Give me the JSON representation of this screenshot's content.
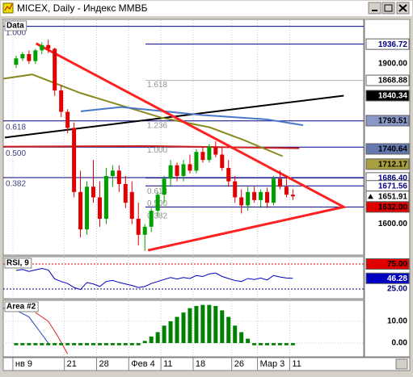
{
  "window": {
    "title": "MICEX, Daily - Индекс ММВБ"
  },
  "chart_data": [
    {
      "type": "candlestick",
      "label": "Data",
      "categories": [
        "нв 9",
        null,
        null,
        null,
        null,
        null,
        null,
        null,
        "21",
        null,
        null,
        null,
        null,
        "28",
        null,
        null,
        null,
        null,
        "Фев 4",
        null,
        null,
        null,
        null,
        "11",
        null,
        null,
        null,
        null,
        "18",
        null,
        null,
        null,
        null,
        null,
        "26",
        null,
        null,
        null,
        "Мар 3",
        null,
        null,
        null,
        null,
        "11"
      ],
      "open": [
        1898,
        1910,
        1918,
        1905,
        1925,
        1935,
        1928,
        1850,
        1810,
        1780,
        1660,
        1590,
        1670,
        1650,
        1610,
        1690,
        1700,
        1675,
        1660,
        1610,
        1580,
        1595,
        1625,
        1655,
        1685,
        1710,
        1690,
        1712,
        1700,
        1735,
        1720,
        1745,
        1730,
        1705,
        1680,
        1650,
        1635,
        1660,
        1645,
        1660,
        1640,
        1685,
        1670,
        1655
      ],
      "high": [
        1915,
        1922,
        1925,
        1928,
        1940,
        1945,
        1930,
        1860,
        1815,
        1790,
        1700,
        1680,
        1720,
        1680,
        1705,
        1710,
        1710,
        1690,
        1680,
        1640,
        1600,
        1630,
        1660,
        1690,
        1720,
        1715,
        1720,
        1730,
        1740,
        1745,
        1750,
        1755,
        1745,
        1720,
        1690,
        1665,
        1670,
        1670,
        1665,
        1668,
        1690,
        1700,
        1690,
        1665
      ],
      "low": [
        1892,
        1905,
        1900,
        1900,
        1918,
        1920,
        1840,
        1800,
        1770,
        1650,
        1575,
        1580,
        1640,
        1595,
        1600,
        1670,
        1660,
        1630,
        1600,
        1560,
        1550,
        1585,
        1615,
        1640,
        1670,
        1680,
        1680,
        1695,
        1695,
        1715,
        1715,
        1725,
        1700,
        1670,
        1640,
        1620,
        1625,
        1640,
        1630,
        1630,
        1635,
        1665,
        1650,
        1645
      ],
      "close": [
        1910,
        1918,
        1905,
        1925,
        1935,
        1928,
        1850,
        1810,
        1780,
        1660,
        1590,
        1670,
        1650,
        1610,
        1690,
        1700,
        1675,
        1640,
        1610,
        1580,
        1595,
        1625,
        1655,
        1685,
        1710,
        1690,
        1712,
        1700,
        1735,
        1720,
        1745,
        1730,
        1705,
        1680,
        1650,
        1635,
        1660,
        1645,
        1660,
        1640,
        1685,
        1670,
        1655,
        1651.91
      ],
      "up_color": "#00a000",
      "down_color": "#e00000",
      "xlim": [
        -2,
        54
      ],
      "ylim": [
        1545,
        1980
      ],
      "yticks": [
        {
          "value": 1900,
          "label": "1900.00"
        },
        {
          "value": 1600,
          "label": "1600.00"
        }
      ],
      "price_labels": [
        {
          "value": 1936.72,
          "label": "1936.72",
          "bg": "#ffffff",
          "fg": "#000080",
          "line": "#000080"
        },
        {
          "value": 1868.88,
          "label": "1868.88",
          "bg": "#ffffff",
          "fg": "#000000",
          "line": "#b0b0b0"
        },
        {
          "value": 1840.34,
          "label": "1840.34",
          "bg": "#000000",
          "fg": "#ffffff"
        },
        {
          "value": 1793.51,
          "label": "1793.51",
          "bg": "#8a98c8",
          "fg": "#000000"
        },
        {
          "value": 1740.64,
          "label": "1740.64",
          "bg": "#6678b0",
          "fg": "#000000"
        },
        {
          "value": 1712.17,
          "label": "1712.17",
          "bg": "#a8a040",
          "fg": "#000000"
        },
        {
          "value": 1686.4,
          "label": "1686.40",
          "bg": "#ffffff",
          "fg": "#000080",
          "line": "#000080"
        },
        {
          "value": 1671.56,
          "label": "1671.56",
          "bg": "#ffffff",
          "fg": "#000080",
          "line": "#000080"
        },
        {
          "value": 1632,
          "label": "1632.00",
          "bg": "#e00000",
          "fg": "#000000",
          "line": "#000080"
        }
      ],
      "fib_levels": [
        {
          "value": 1970,
          "label": "1.000"
        },
        {
          "value": 1793,
          "label": "0.618"
        },
        {
          "value": 1744,
          "label": "0.500"
        },
        {
          "value": 1687,
          "label": "0.382"
        }
      ],
      "fib_levels_2": [
        {
          "value": 1860,
          "label": "1.618"
        },
        {
          "value": 1784,
          "label": "1.236"
        },
        {
          "value": 1738,
          "label": "1.000"
        },
        {
          "value": 1661,
          "label": "0.618"
        },
        {
          "value": 1638,
          "label": "0.500"
        },
        {
          "value": 1615,
          "label": "0.382"
        }
      ],
      "lines": [
        {
          "color": "#000000",
          "width": 2,
          "x": [
            -1.75,
            50.9
          ],
          "y": [
            1762,
            1840.34
          ]
        },
        {
          "color": "#d02020",
          "width": 2,
          "x": [
            -2,
            20,
            44
          ],
          "y": [
            1745,
            1746,
            1742
          ]
        },
        {
          "color": "#8a8a20",
          "width": 2,
          "x": [
            -2,
            2.5,
            10.05,
            22.6,
            30.1,
            35.2,
            41.4
          ],
          "y": [
            1872,
            1880,
            1845,
            1799,
            1781,
            1758,
            1727
          ]
        },
        {
          "color": "#4a78c8",
          "width": 2,
          "x": [
            10.05,
            16.3,
            28.9,
            38.9,
            44.6
          ],
          "y": [
            1811,
            1819,
            1804,
            1796,
            1785
          ]
        },
        {
          "color": "#ff2020",
          "width": 3,
          "x": [
            3.1,
            50.9,
            20.5
          ],
          "y": [
            1938,
            1632,
            1551
          ]
        }
      ]
    },
    {
      "type": "line",
      "label": "RSI, 9",
      "color": "#0000c0",
      "values": [
        62,
        64,
        60,
        63,
        66,
        63,
        45,
        40,
        36,
        28,
        24,
        38,
        35,
        30,
        40,
        42,
        38,
        35,
        32,
        28,
        30,
        36,
        40,
        44,
        48,
        45,
        48,
        46,
        52,
        50,
        55,
        57,
        50,
        46,
        42,
        40,
        46,
        44,
        47,
        43,
        52,
        49,
        47,
        46.28
      ],
      "ylim": [
        5.6,
        89.5
      ],
      "yticks": [
        {
          "value": 75,
          "label": "75.00"
        },
        {
          "value": 25,
          "label": "25.00"
        }
      ],
      "ytick_colors": [
        "#e00000",
        "#000080"
      ]
    },
    {
      "type": "bar",
      "label": "Area #2",
      "color": "#008000",
      "values": [
        -1,
        -1,
        -1,
        -1,
        -1,
        -1,
        -1,
        -1,
        -1,
        -1,
        -1,
        -1,
        -1,
        -1,
        -1,
        -1,
        -1,
        -1,
        -1,
        -1,
        1,
        3,
        5,
        8,
        10,
        12,
        14,
        16,
        17,
        17.5,
        17.5,
        17,
        15,
        12,
        8,
        5,
        2,
        -1,
        -1,
        -1,
        -1,
        -1,
        -1,
        -1
      ],
      "ylim": [
        -6.3,
        19.6
      ],
      "yticks": [
        {
          "value": 10,
          "label": "10.00"
        },
        {
          "value": 0,
          "label": "0.00"
        }
      ],
      "lines": [
        {
          "color": "#2040c0",
          "width": 1,
          "x": [
            -2,
            0,
            2,
            3.5,
            5
          ],
          "y": [
            16,
            15,
            12,
            6,
            0
          ]
        },
        {
          "color": "#e02020",
          "width": 1,
          "x": [
            3,
            5,
            6.5,
            8
          ],
          "y": [
            14,
            10,
            3,
            -5
          ]
        }
      ]
    }
  ]
}
